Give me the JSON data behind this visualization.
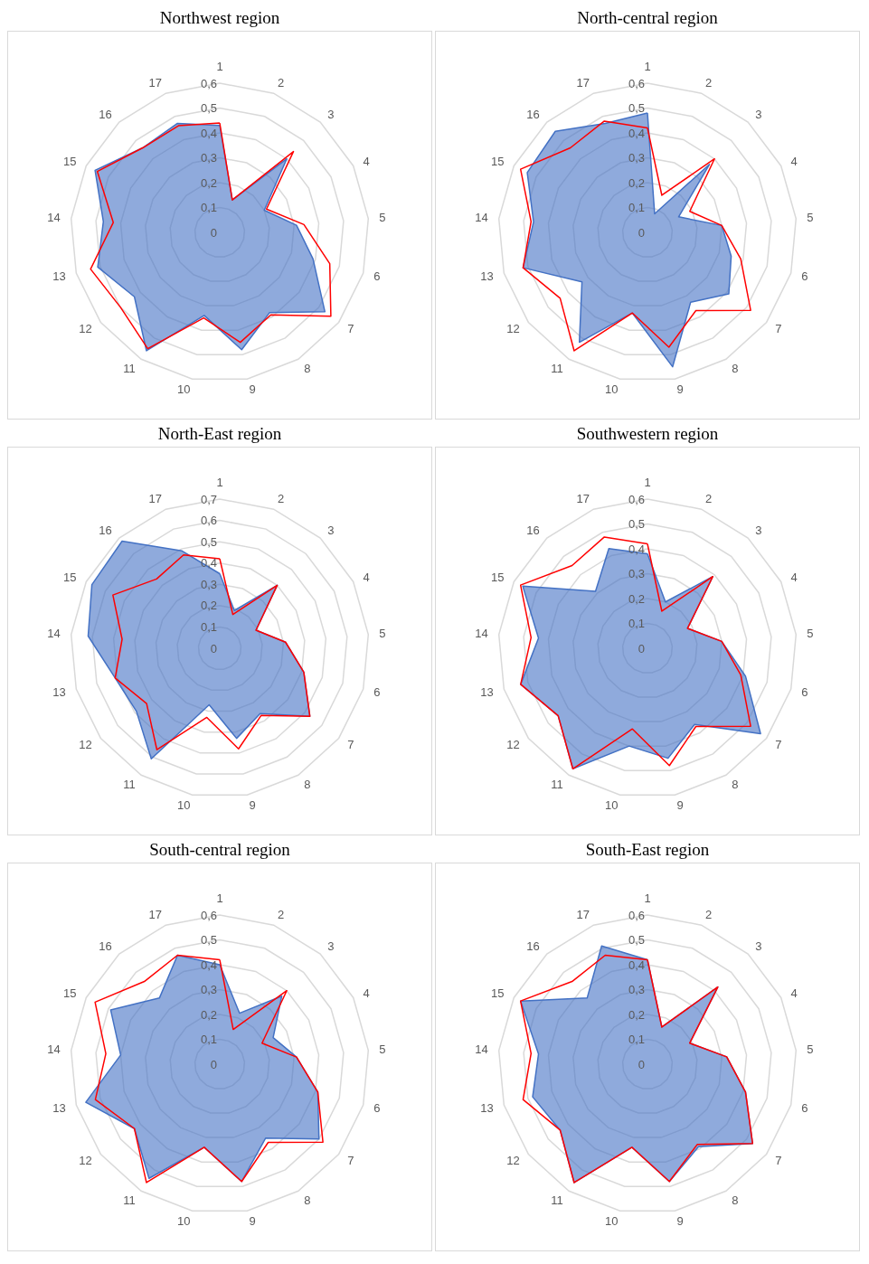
{
  "chart_data": [
    {
      "type": "radar",
      "title": "Northwest region",
      "categories": [
        "1",
        "2",
        "3",
        "4",
        "5",
        "6",
        "7",
        "8",
        "9",
        "10",
        "11",
        "12",
        "13",
        "14",
        "15",
        "16",
        "17"
      ],
      "ylim": [
        0,
        0.6
      ],
      "yticks": [
        {
          "value": 0,
          "label": "0"
        },
        {
          "value": 0.1,
          "label": "0,1"
        },
        {
          "value": 0.2,
          "label": "0,2"
        },
        {
          "value": 0.3,
          "label": "0,3"
        },
        {
          "value": 0.4,
          "label": "0,4"
        },
        {
          "value": 0.5,
          "label": "0,5"
        },
        {
          "value": 0.6,
          "label": "0,6"
        }
      ],
      "grid": true,
      "marker": "none",
      "series": [
        {
          "type": "area",
          "color": "#4472c4",
          "values": [
            0.43,
            0.14,
            0.4,
            0.2,
            0.31,
            0.39,
            0.53,
            0.38,
            0.48,
            0.34,
            0.56,
            0.43,
            0.51,
            0.47,
            0.56,
            0.46,
            0.47
          ]
        },
        {
          "color": "#ff0000",
          "values": [
            0.44,
            0.14,
            0.44,
            0.21,
            0.34,
            0.46,
            0.56,
            0.39,
            0.45,
            0.35,
            0.55,
            0.5,
            0.54,
            0.43,
            0.55,
            0.46,
            0.46
          ]
        }
      ]
    },
    {
      "type": "radar",
      "title": "North-central region",
      "categories": [
        "1",
        "2",
        "3",
        "4",
        "5",
        "6",
        "7",
        "8",
        "9",
        "10",
        "11",
        "12",
        "13",
        "14",
        "15",
        "16",
        "17"
      ],
      "ylim": [
        0,
        0.6
      ],
      "yticks": [
        {
          "value": 0,
          "label": "0"
        },
        {
          "value": 0.1,
          "label": "0,1"
        },
        {
          "value": 0.2,
          "label": "0,2"
        },
        {
          "value": 0.3,
          "label": "0,3"
        },
        {
          "value": 0.4,
          "label": "0,4"
        },
        {
          "value": 0.5,
          "label": "0,5"
        },
        {
          "value": 0.6,
          "label": "0,6"
        }
      ],
      "grid": true,
      "marker": "none",
      "series": [
        {
          "type": "area",
          "color": "#4472c4",
          "values": [
            0.48,
            0.08,
            0.37,
            0.14,
            0.3,
            0.35,
            0.41,
            0.33,
            0.55,
            0.33,
            0.52,
            0.33,
            0.52,
            0.46,
            0.54,
            0.55,
            0.47
          ]
        },
        {
          "color": "#ff0000",
          "values": [
            0.42,
            0.16,
            0.4,
            0.19,
            0.3,
            0.39,
            0.52,
            0.37,
            0.47,
            0.33,
            0.56,
            0.44,
            0.52,
            0.47,
            0.57,
            0.46,
            0.48
          ]
        }
      ]
    },
    {
      "type": "radar",
      "title": "North-East region",
      "categories": [
        "1",
        "2",
        "3",
        "4",
        "5",
        "6",
        "7",
        "8",
        "9",
        "10",
        "11",
        "12",
        "13",
        "14",
        "15",
        "16",
        "17"
      ],
      "ylim": [
        0,
        0.7
      ],
      "yticks": [
        {
          "value": 0,
          "label": "0"
        },
        {
          "value": 0.1,
          "label": "0,1"
        },
        {
          "value": 0.2,
          "label": "0,2"
        },
        {
          "value": 0.3,
          "label": "0,3"
        },
        {
          "value": 0.4,
          "label": "0,4"
        },
        {
          "value": 0.5,
          "label": "0,5"
        },
        {
          "value": 0.6,
          "label": "0,6"
        },
        {
          "value": 0.7,
          "label": "0,7"
        }
      ],
      "grid": true,
      "marker": "none",
      "series": [
        {
          "type": "area",
          "color": "#4472c4",
          "values": [
            0.35,
            0.19,
            0.4,
            0.19,
            0.31,
            0.41,
            0.53,
            0.36,
            0.43,
            0.27,
            0.61,
            0.49,
            0.51,
            0.62,
            0.67,
            0.68,
            0.49
          ]
        },
        {
          "color": "#ff0000",
          "values": [
            0.42,
            0.17,
            0.4,
            0.19,
            0.31,
            0.41,
            0.53,
            0.37,
            0.48,
            0.33,
            0.56,
            0.43,
            0.51,
            0.46,
            0.56,
            0.44,
            0.47
          ]
        }
      ]
    },
    {
      "type": "radar",
      "title": "Southwestern region",
      "categories": [
        "1",
        "2",
        "3",
        "4",
        "5",
        "6",
        "7",
        "8",
        "9",
        "10",
        "11",
        "12",
        "13",
        "14",
        "15",
        "16",
        "17"
      ],
      "ylim": [
        0,
        0.6
      ],
      "yticks": [
        {
          "value": 0,
          "label": "0"
        },
        {
          "value": 0.1,
          "label": "0,1"
        },
        {
          "value": 0.2,
          "label": "0,2"
        },
        {
          "value": 0.3,
          "label": "0,3"
        },
        {
          "value": 0.4,
          "label": "0,4"
        },
        {
          "value": 0.5,
          "label": "0,5"
        },
        {
          "value": 0.6,
          "label": "0,6"
        }
      ],
      "grid": true,
      "marker": "none",
      "series": [
        {
          "type": "area",
          "color": "#4472c4",
          "values": [
            0.38,
            0.2,
            0.39,
            0.18,
            0.3,
            0.41,
            0.57,
            0.36,
            0.45,
            0.4,
            0.57,
            0.45,
            0.53,
            0.44,
            0.56,
            0.31,
            0.43
          ]
        },
        {
          "color": "#ff0000",
          "values": [
            0.42,
            0.16,
            0.39,
            0.18,
            0.3,
            0.39,
            0.52,
            0.37,
            0.48,
            0.33,
            0.57,
            0.45,
            0.53,
            0.47,
            0.57,
            0.45,
            0.48
          ]
        }
      ]
    },
    {
      "type": "radar",
      "title": "South-central region",
      "categories": [
        "1",
        "2",
        "3",
        "4",
        "5",
        "6",
        "7",
        "8",
        "9",
        "10",
        "11",
        "12",
        "13",
        "14",
        "15",
        "16",
        "17"
      ],
      "ylim": [
        0,
        0.6
      ],
      "yticks": [
        {
          "value": 0,
          "label": "0"
        },
        {
          "value": 0.1,
          "label": "0,1"
        },
        {
          "value": 0.2,
          "label": "0,2"
        },
        {
          "value": 0.3,
          "label": "0,3"
        },
        {
          "value": 0.4,
          "label": "0,4"
        },
        {
          "value": 0.5,
          "label": "0,5"
        },
        {
          "value": 0.6,
          "label": "0,6"
        }
      ],
      "grid": true,
      "marker": "none",
      "series": [
        {
          "type": "area",
          "color": "#4472c4",
          "values": [
            0.4,
            0.22,
            0.37,
            0.24,
            0.31,
            0.41,
            0.5,
            0.35,
            0.48,
            0.34,
            0.54,
            0.43,
            0.56,
            0.4,
            0.49,
            0.36,
            0.47
          ]
        },
        {
          "color": "#ff0000",
          "values": [
            0.42,
            0.15,
            0.4,
            0.19,
            0.31,
            0.41,
            0.52,
            0.37,
            0.48,
            0.34,
            0.56,
            0.43,
            0.52,
            0.46,
            0.56,
            0.45,
            0.47
          ]
        }
      ]
    },
    {
      "type": "radar",
      "title": "South-East region",
      "categories": [
        "1",
        "2",
        "3",
        "4",
        "5",
        "6",
        "7",
        "8",
        "9",
        "10",
        "11",
        "12",
        "13",
        "14",
        "15",
        "16",
        "17"
      ],
      "ylim": [
        0,
        0.6
      ],
      "yticks": [
        {
          "value": 0,
          "label": "0"
        },
        {
          "value": 0.1,
          "label": "0,1"
        },
        {
          "value": 0.2,
          "label": "0,2"
        },
        {
          "value": 0.3,
          "label": "0,3"
        },
        {
          "value": 0.4,
          "label": "0,4"
        },
        {
          "value": 0.5,
          "label": "0,5"
        },
        {
          "value": 0.6,
          "label": "0,6"
        }
      ],
      "grid": true,
      "marker": "none",
      "series": [
        {
          "type": "area",
          "color": "#4472c4",
          "values": [
            0.42,
            0.16,
            0.42,
            0.19,
            0.32,
            0.41,
            0.53,
            0.39,
            0.48,
            0.34,
            0.56,
            0.44,
            0.48,
            0.44,
            0.57,
            0.36,
            0.51
          ]
        },
        {
          "color": "#ff0000",
          "values": [
            0.42,
            0.16,
            0.42,
            0.19,
            0.32,
            0.41,
            0.53,
            0.38,
            0.48,
            0.34,
            0.56,
            0.44,
            0.52,
            0.47,
            0.57,
            0.45,
            0.47
          ]
        }
      ]
    }
  ]
}
